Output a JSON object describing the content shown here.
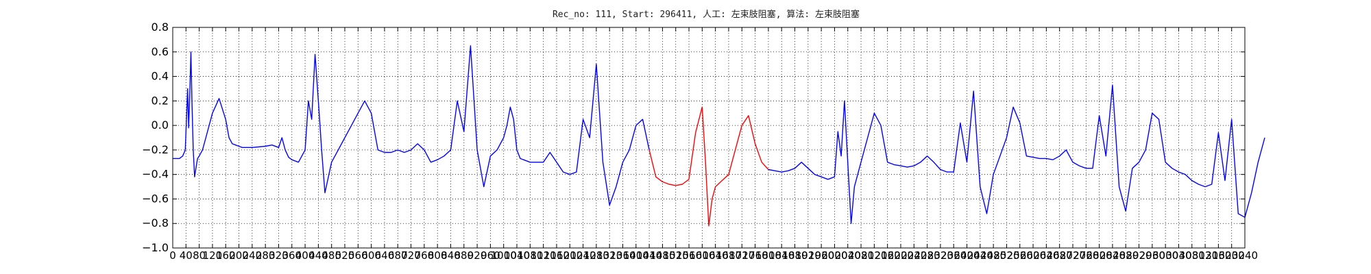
{
  "chart_data": {
    "type": "line",
    "title": "Rec_no: 111, Start: 296411, 人工: 左束肢阻塞, 算法: 左束肢阻塞",
    "xlabel": "",
    "ylabel": "",
    "xlim": [
      0,
      3240
    ],
    "ylim": [
      -1.0,
      0.8
    ],
    "yticks": [
      -1.0,
      -0.8,
      -0.6,
      -0.4,
      -0.2,
      0.0,
      0.2,
      0.4,
      0.6,
      0.8
    ],
    "ytick_labels": [
      "−1.0",
      "−0.8",
      "−0.6",
      "−0.4",
      "−0.2",
      "0.0",
      "0.2",
      "0.4",
      "0.6",
      "0.8"
    ],
    "xticks": [
      0,
      40,
      80,
      120,
      160,
      200,
      240,
      280,
      320,
      360,
      400,
      440,
      480,
      520,
      560,
      600,
      640,
      680,
      720,
      760,
      800,
      840,
      880,
      920,
      960,
      1000,
      1040,
      1080,
      1120,
      1160,
      1200,
      1240,
      1280,
      1320,
      1360,
      1400,
      1440,
      1480,
      1520,
      1560,
      1600,
      1640,
      1680,
      1720,
      1760,
      1800,
      1840,
      1880,
      1920,
      1960,
      2000,
      2040,
      2080,
      2120,
      2160,
      2200,
      2240,
      2280,
      2320,
      2360,
      2400,
      2440,
      2480,
      2520,
      2560,
      2600,
      2640,
      2680,
      2720,
      2760,
      2800,
      2840,
      2880,
      2920,
      2960,
      3000,
      3040,
      3080,
      3120,
      3160,
      3200,
      3240
    ],
    "xtick_labels": [
      "0",
      "40",
      "80",
      "120",
      "160",
      "200",
      "240",
      "280",
      "320",
      "360",
      "400",
      "440",
      "480",
      "520",
      "560",
      "600",
      "640",
      "680",
      "720",
      "760",
      "800",
      "840",
      "880",
      "920",
      "960",
      "1000",
      "1040",
      "1080",
      "1120",
      "1160",
      "1200",
      "1240",
      "1280",
      "1320",
      "1360",
      "1400",
      "1440",
      "1480",
      "1520",
      "1560",
      "1600",
      "1640",
      "1680",
      "1720",
      "1760",
      "1800",
      "1840",
      "1880",
      "1920",
      "1960",
      "2000",
      "2040",
      "2080",
      "2120",
      "2160",
      "2200",
      "2240",
      "2280",
      "2320",
      "2360",
      "2400",
      "2440",
      "2480",
      "2520",
      "2560",
      "2600",
      "2640",
      "2680",
      "2720",
      "2760",
      "2800",
      "2840",
      "2880",
      "2920",
      "2960",
      "3000",
      "3040",
      "3080",
      "3120",
      "3160",
      "3200",
      "3240"
    ],
    "grid": true,
    "series": [
      {
        "name": "ecg-before",
        "color": "#0000ff",
        "x": [
          0,
          20,
          30,
          38,
          45,
          48,
          52,
          55,
          58,
          62,
          66,
          70,
          75,
          80,
          90,
          100,
          120,
          140,
          160,
          170,
          180,
          190,
          200,
          210,
          220,
          240,
          280,
          300,
          320,
          330,
          340,
          350,
          360,
          380,
          400,
          410,
          420,
          430,
          440,
          450,
          460,
          480,
          500,
          520,
          540,
          560,
          580,
          600,
          620,
          640,
          660,
          680,
          700,
          720,
          740,
          760,
          780,
          800,
          820,
          840,
          860,
          880,
          900,
          920,
          940,
          960,
          980,
          1000,
          1010,
          1020,
          1030,
          1040,
          1050,
          1060,
          1080,
          1100,
          1120,
          1140,
          1160,
          1180,
          1200,
          1220,
          1240,
          1260,
          1280,
          1300,
          1320,
          1340,
          1360,
          1380,
          1400,
          1420,
          1440
        ],
        "y": [
          -0.27,
          -0.27,
          -0.25,
          -0.2,
          0.3,
          -0.02,
          0.3,
          0.6,
          0.2,
          -0.2,
          -0.42,
          -0.35,
          -0.27,
          -0.25,
          -0.2,
          -0.1,
          0.1,
          0.22,
          0.05,
          -0.1,
          -0.15,
          -0.16,
          -0.17,
          -0.18,
          -0.18,
          -0.18,
          -0.17,
          -0.16,
          -0.18,
          -0.1,
          -0.2,
          -0.26,
          -0.28,
          -0.3,
          -0.2,
          0.2,
          0.05,
          0.58,
          0.2,
          -0.2,
          -0.55,
          -0.3,
          -0.2,
          -0.1,
          0.0,
          0.1,
          0.2,
          0.1,
          -0.2,
          -0.22,
          -0.22,
          -0.2,
          -0.22,
          -0.2,
          -0.15,
          -0.2,
          -0.3,
          -0.28,
          -0.25,
          -0.2,
          0.2,
          -0.05,
          0.65,
          -0.2,
          -0.5,
          -0.25,
          -0.2,
          -0.1,
          0.0,
          0.15,
          0.05,
          -0.2,
          -0.27,
          -0.28,
          -0.3,
          -0.3,
          -0.3,
          -0.22,
          -0.3,
          -0.38,
          -0.4,
          -0.38,
          0.05,
          -0.1,
          0.5,
          -0.3,
          -0.65,
          -0.5,
          -0.3,
          -0.2,
          0.0,
          0.05,
          -0.2
        ]
      },
      {
        "name": "ecg-flagged",
        "color": "#ff0000",
        "x": [
          1440,
          1460,
          1480,
          1500,
          1520,
          1540,
          1560,
          1580,
          1600,
          1610,
          1620,
          1630,
          1640,
          1660,
          1680,
          1700,
          1720,
          1740,
          1760,
          1780,
          1800
        ],
        "y": [
          -0.2,
          -0.42,
          -0.46,
          -0.48,
          -0.49,
          -0.48,
          -0.44,
          -0.06,
          0.15,
          -0.3,
          -0.82,
          -0.6,
          -0.5,
          -0.45,
          -0.4,
          -0.2,
          0.0,
          0.08,
          -0.15,
          -0.3,
          -0.36
        ]
      },
      {
        "name": "ecg-after",
        "color": "#0000ff",
        "x": [
          1800,
          1820,
          1840,
          1860,
          1880,
          1900,
          1920,
          1940,
          1960,
          1980,
          2000,
          2010,
          2020,
          2030,
          2040,
          2050,
          2060,
          2080,
          2100,
          2120,
          2140,
          2160,
          2180,
          2200,
          2220,
          2240,
          2260,
          2280,
          2300,
          2320,
          2340,
          2360,
          2380,
          2400,
          2420,
          2440,
          2460,
          2480,
          2500,
          2520,
          2540,
          2560,
          2580,
          2600,
          2620,
          2640,
          2660,
          2680,
          2700,
          2720,
          2740,
          2760,
          2780,
          2800,
          2820,
          2840,
          2860,
          2880,
          2900,
          2920,
          2940,
          2960,
          2980,
          3000,
          3020,
          3040,
          3060,
          3080,
          3100,
          3120,
          3140,
          3160,
          3180,
          3200,
          3220,
          3240
        ],
        "y": [
          -0.36,
          -0.37,
          -0.38,
          -0.37,
          -0.35,
          -0.3,
          -0.35,
          -0.4,
          -0.42,
          -0.44,
          -0.42,
          -0.05,
          -0.25,
          0.2,
          -0.3,
          -0.8,
          -0.5,
          -0.3,
          -0.1,
          0.1,
          0.0,
          -0.3,
          -0.32,
          -0.33,
          -0.34,
          -0.33,
          -0.3,
          -0.25,
          -0.3,
          -0.36,
          -0.38,
          -0.38,
          0.02,
          -0.3,
          0.28,
          -0.5,
          -0.72,
          -0.4,
          -0.25,
          -0.1,
          0.15,
          0.02,
          -0.25,
          -0.26,
          -0.27,
          -0.27,
          -0.28,
          -0.25,
          -0.2,
          -0.3,
          -0.33,
          -0.35,
          -0.35,
          0.08,
          -0.25,
          0.33,
          -0.5,
          -0.7,
          -0.35,
          -0.3,
          -0.2,
          0.1,
          0.05,
          -0.3,
          -0.35,
          -0.38,
          -0.4,
          -0.45,
          -0.48,
          -0.5,
          -0.48,
          -0.06,
          -0.45,
          0.05,
          -0.72,
          -0.75
        ]
      },
      {
        "name": "ecg-after-tail",
        "color": "#0000ff",
        "x": [
          3240,
          3260,
          3280,
          3300
        ],
        "y": [
          -0.75,
          -0.55,
          -0.3,
          -0.1
        ]
      }
    ]
  }
}
